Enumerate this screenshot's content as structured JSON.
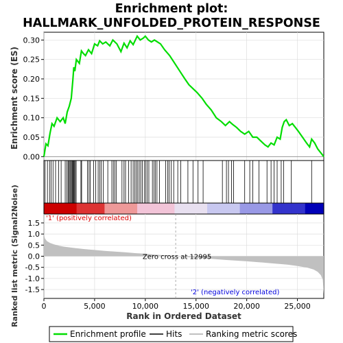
{
  "chart_data": {
    "type": "line",
    "title_line1": "Enrichment plot:",
    "title_line2": "HALLMARK_UNFOLDED_PROTEIN_RESPONSE",
    "top_panel": {
      "ylabel": "Enrichment score (ES)",
      "ylim": [
        -0.01,
        0.32
      ],
      "yticks": [
        "0.00",
        "0.05",
        "0.10",
        "0.15",
        "0.20",
        "0.25",
        "0.30"
      ],
      "ytick_values": [
        0,
        0.05,
        0.1,
        0.15,
        0.2,
        0.25,
        0.3
      ],
      "grid": true,
      "series": [
        {
          "name": "Enrichment profile",
          "color": "#00dd00",
          "x": [
            0,
            200,
            400,
            600,
            800,
            1000,
            1300,
            1600,
            1900,
            2100,
            2300,
            2500,
            2700,
            2850,
            2950,
            3050,
            3200,
            3500,
            3700,
            3900,
            4100,
            4400,
            4700,
            5000,
            5300,
            5500,
            5800,
            6100,
            6500,
            6800,
            7200,
            7600,
            7900,
            8200,
            8500,
            8800,
            9200,
            9500,
            9800,
            10000,
            10300,
            10600,
            10900,
            11200,
            11500,
            11900,
            12400,
            12900,
            13400,
            13900,
            14300,
            14700,
            15100,
            15600,
            16000,
            16500,
            17000,
            17500,
            17900,
            18300,
            18600,
            19000,
            19400,
            19800,
            20200,
            20600,
            21000,
            21400,
            21800,
            22100,
            22400,
            22700,
            23000,
            23300,
            23500,
            23700,
            23900,
            24200,
            24500,
            24800,
            25100,
            25500,
            25900,
            26200,
            26400,
            26700,
            27000,
            27300,
            27600
          ],
          "y": [
            0.0,
            0.033,
            0.028,
            0.06,
            0.085,
            0.078,
            0.1,
            0.09,
            0.1,
            0.085,
            0.115,
            0.13,
            0.15,
            0.195,
            0.23,
            0.22,
            0.25,
            0.24,
            0.272,
            0.265,
            0.26,
            0.275,
            0.265,
            0.29,
            0.285,
            0.298,
            0.29,
            0.295,
            0.285,
            0.3,
            0.29,
            0.27,
            0.292,
            0.28,
            0.298,
            0.288,
            0.31,
            0.3,
            0.305,
            0.31,
            0.3,
            0.295,
            0.3,
            0.295,
            0.29,
            0.275,
            0.26,
            0.24,
            0.22,
            0.2,
            0.185,
            0.175,
            0.165,
            0.15,
            0.135,
            0.12,
            0.1,
            0.09,
            0.08,
            0.09,
            0.083,
            0.075,
            0.065,
            0.058,
            0.065,
            0.05,
            0.05,
            0.04,
            0.03,
            0.025,
            0.035,
            0.03,
            0.05,
            0.045,
            0.075,
            0.09,
            0.095,
            0.08,
            0.085,
            0.075,
            0.065,
            0.05,
            0.035,
            0.025,
            0.045,
            0.035,
            0.02,
            0.01,
            0.0
          ]
        }
      ]
    },
    "hits": [
      120,
      350,
      560,
      720,
      900,
      1150,
      1450,
      1700,
      2100,
      2250,
      2380,
      2450,
      2560,
      2640,
      2720,
      2800,
      2880,
      2940,
      3000,
      3100,
      3180,
      3650,
      3720,
      4300,
      4450,
      4580,
      4900,
      5100,
      5350,
      5500,
      5650,
      5850,
      6300,
      6700,
      6850,
      7000,
      7150,
      7700,
      7900,
      8050,
      8350,
      8600,
      8800,
      8950,
      9100,
      9250,
      9400,
      9550,
      9700,
      9900,
      10050,
      10200,
      10350,
      10700,
      10850,
      11000,
      11150,
      11400,
      12000,
      12200,
      12350,
      12550,
      12800,
      13200,
      13500,
      14200,
      14700,
      15200,
      15700,
      17600,
      18000,
      18200,
      18500,
      18700,
      19800,
      20300,
      20600,
      21200,
      22000,
      22400,
      22700,
      23000,
      23400,
      23650,
      24400,
      26400
    ],
    "heatmap_colors": [
      "#cc0000",
      "#dd3333",
      "#ee9999",
      "#f2c4d8",
      "#e8e0f0",
      "#c8c8f0",
      "#9999e6",
      "#3333cc",
      "#0000b8"
    ],
    "bottom_panel": {
      "xlabel": "Rank in Ordered Dataset",
      "ylabel": "Ranked list metric (Signal2Noise)",
      "xlim": [
        0,
        27600
      ],
      "xticks": [
        "0",
        "5,000",
        "10,000",
        "15,000",
        "20,000",
        "25,000"
      ],
      "xtick_values": [
        0,
        5000,
        10000,
        15000,
        20000,
        25000
      ],
      "ylim": [
        -1.9,
        1.9
      ],
      "yticks": [
        "-1.5",
        "-1.0",
        "-0.5",
        "0.0",
        "0.5",
        "1.0",
        "1.5"
      ],
      "ytick_values": [
        -1.5,
        -1.0,
        -0.5,
        0.0,
        0.5,
        1.0,
        1.5
      ],
      "metric_x": [
        0,
        100,
        300,
        600,
        1000,
        1500,
        2000,
        3000,
        4000,
        5000,
        6000,
        7000,
        8000,
        9000,
        10000,
        11000,
        12000,
        12995,
        14000,
        16000,
        18000,
        20000,
        22000,
        24000,
        25000,
        26000,
        26600,
        27000,
        27300,
        27500,
        27600
      ],
      "metric_y": [
        1.0,
        0.8,
        0.68,
        0.6,
        0.53,
        0.47,
        0.43,
        0.37,
        0.32,
        0.28,
        0.24,
        0.21,
        0.18,
        0.14,
        0.11,
        0.07,
        0.04,
        0.0,
        -0.04,
        -0.1,
        -0.17,
        -0.23,
        -0.3,
        -0.38,
        -0.44,
        -0.52,
        -0.6,
        -0.7,
        -0.85,
        -1.05,
        -1.7
      ],
      "zero_cross_label": "Zero cross at 12995",
      "zero_cross": 12995,
      "pos_label": "'1' (positively correlated)",
      "neg_label": "'2' (negatively correlated)",
      "pos_color": "#dd0000",
      "neg_color": "#0000dd"
    },
    "legend": [
      {
        "label": "Enrichment profile",
        "color": "#00dd00"
      },
      {
        "label": "Hits",
        "color": "#000000"
      },
      {
        "label": "Ranking metric scores",
        "color": "#c0c0c0"
      }
    ]
  }
}
